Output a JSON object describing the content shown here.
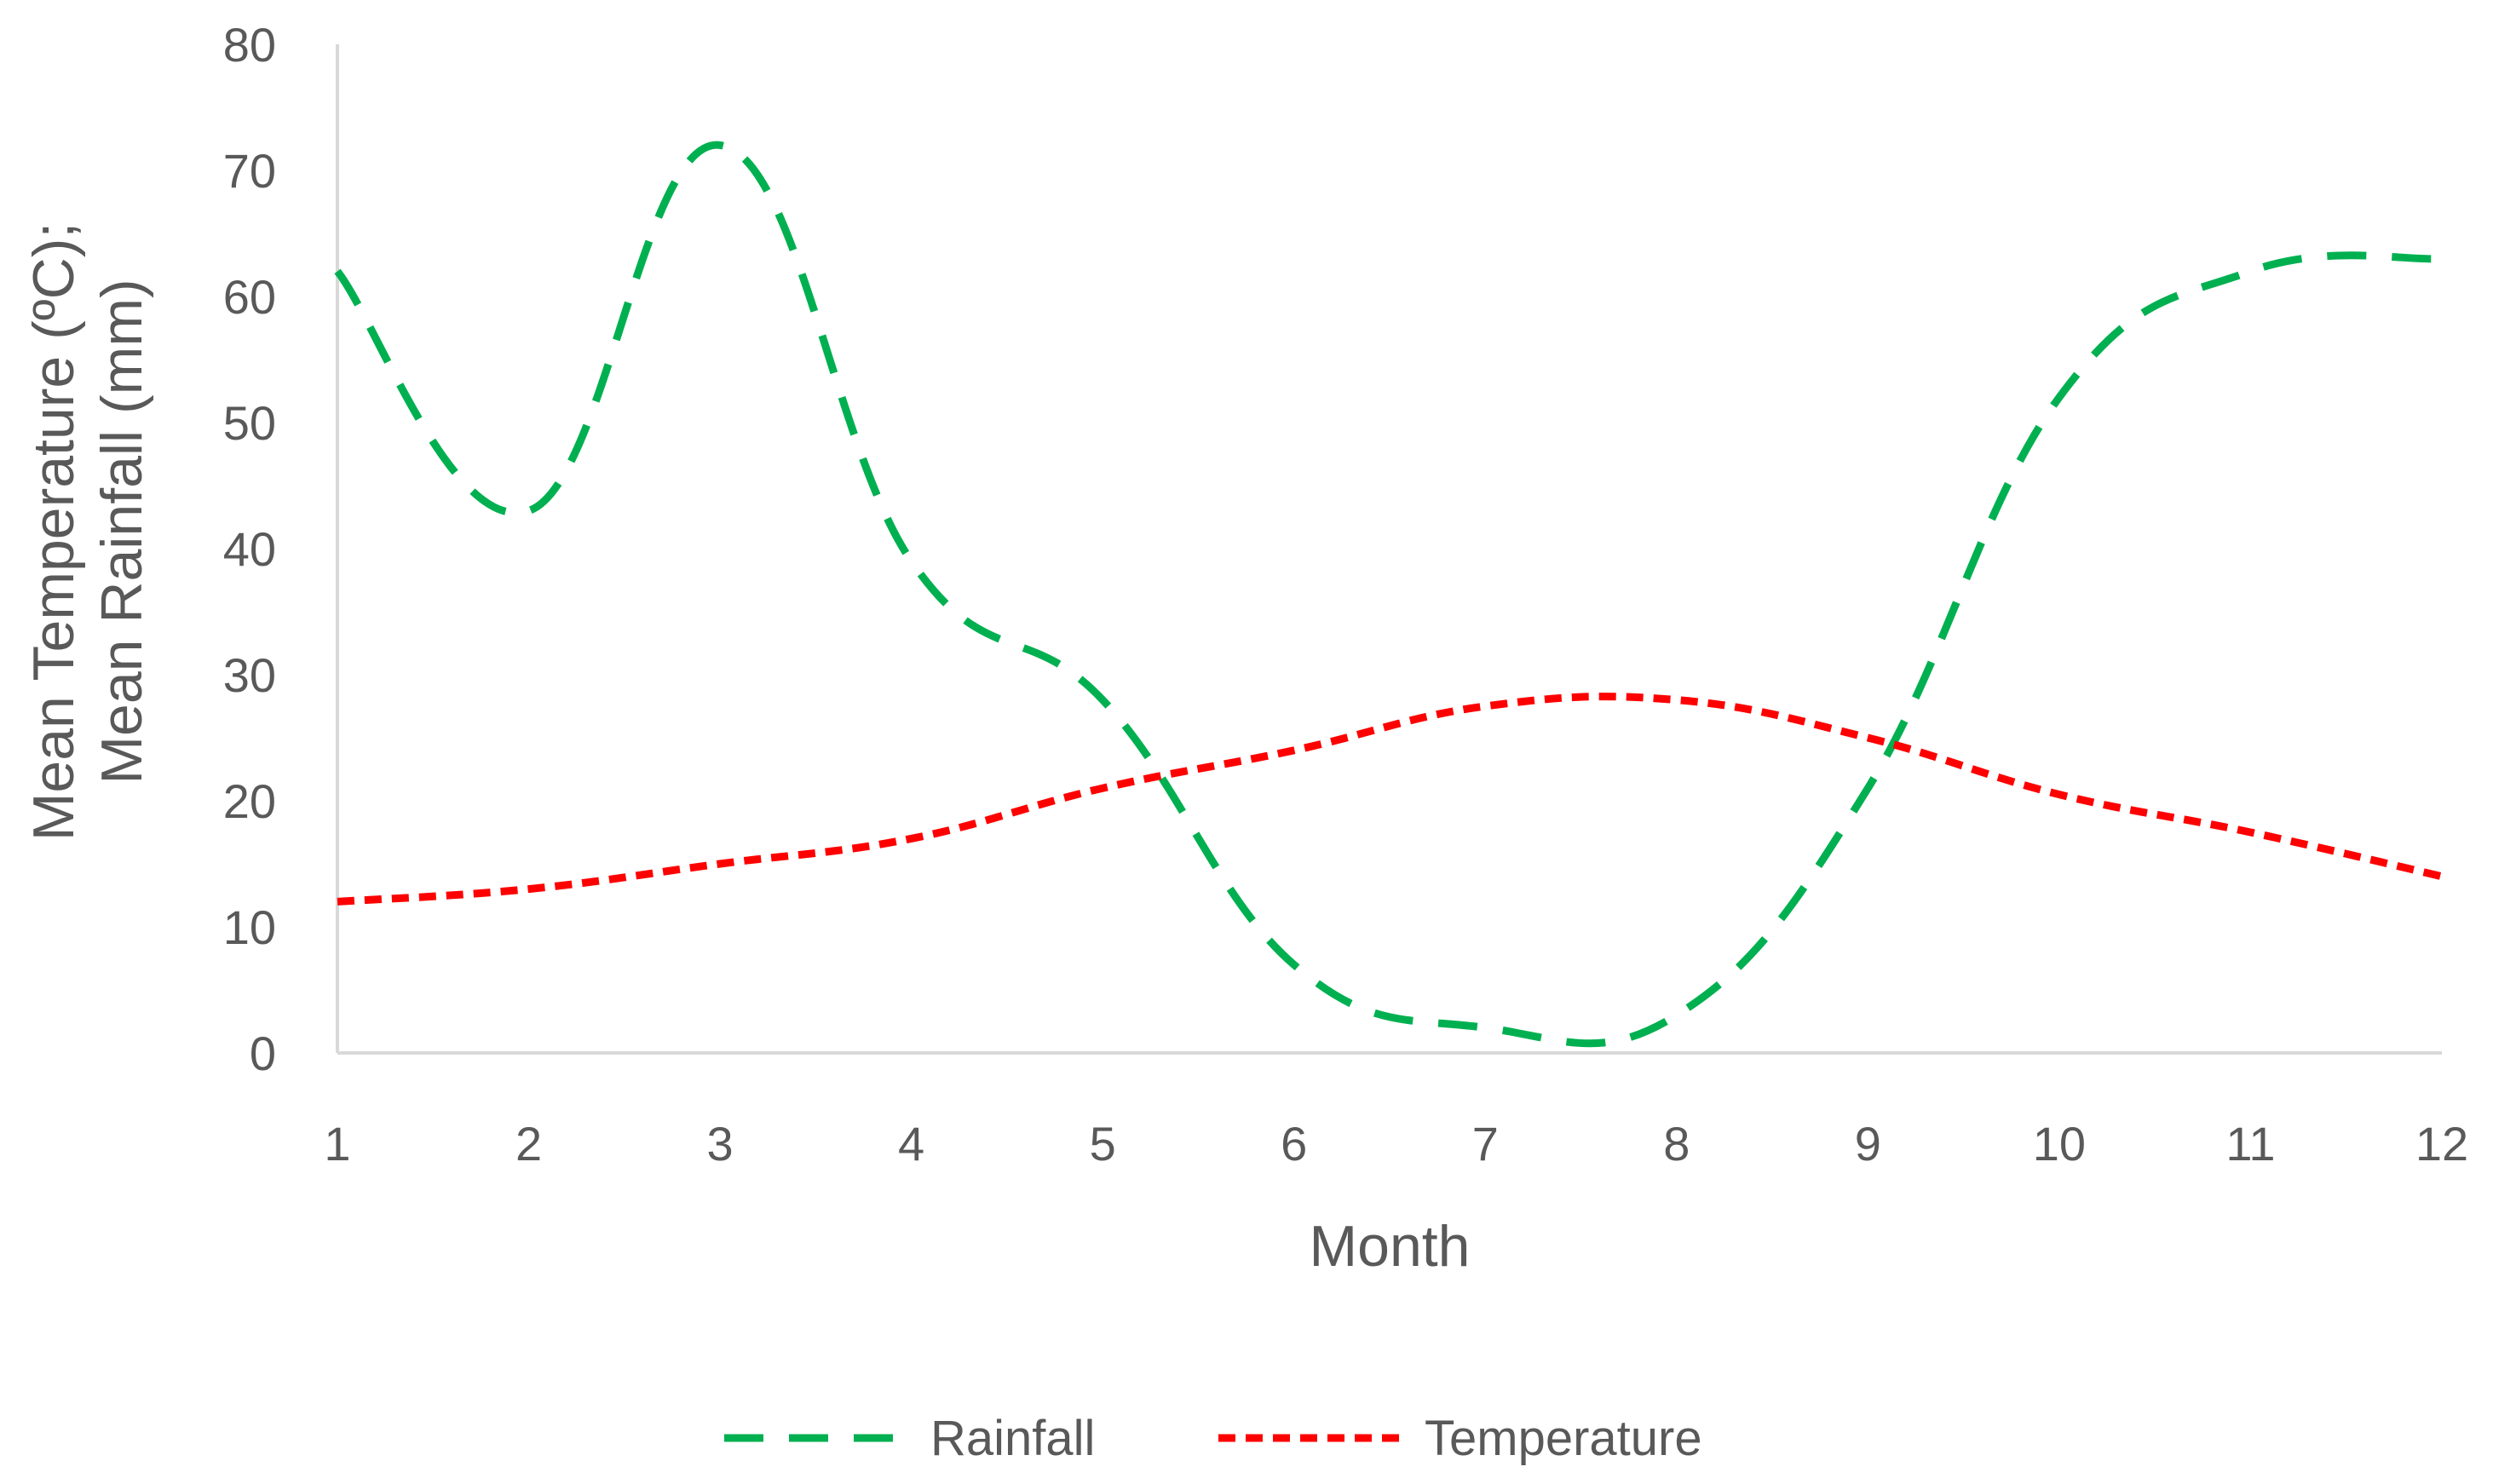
{
  "chart_data": {
    "type": "line",
    "title": "",
    "xlabel": "Month",
    "ylabel_lines": [
      "Mean Temperature (ºC);",
      "Mean Rainfall (mm)"
    ],
    "x": [
      1,
      2,
      3,
      4,
      5,
      6,
      7,
      8,
      9,
      10,
      11,
      12
    ],
    "xlim": [
      1,
      12
    ],
    "ylim": [
      0,
      80
    ],
    "yticks": [
      0,
      10,
      20,
      30,
      40,
      50,
      60,
      70,
      80
    ],
    "grid": false,
    "legend_position": "bottom",
    "series": [
      {
        "name": "Rainfall",
        "color": "#00B050",
        "style": "long-dash",
        "values": [
          62,
          43,
          72,
          39,
          28,
          7,
          2,
          3,
          21,
          52,
          62,
          63
        ]
      },
      {
        "name": "Temperature",
        "color": "#FF0000",
        "style": "short-dash",
        "values": [
          12,
          13,
          15,
          17,
          21,
          24,
          27.5,
          28,
          25,
          20.5,
          17.5,
          14
        ]
      }
    ]
  }
}
